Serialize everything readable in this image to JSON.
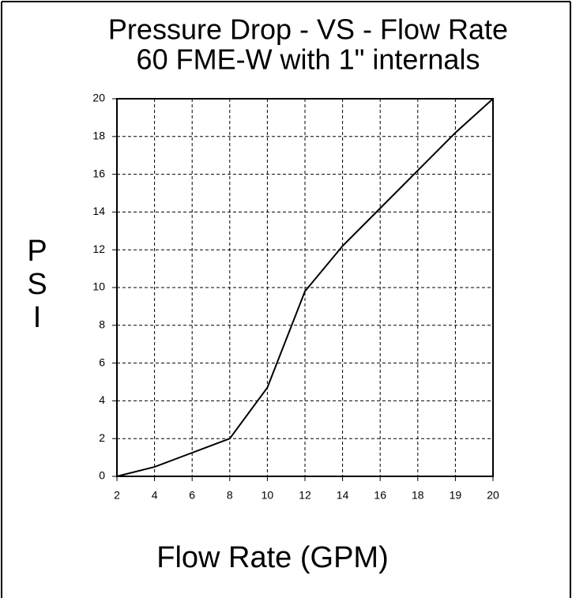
{
  "chart_data": {
    "type": "line",
    "title": "Pressure Drop - VS - Flow Rate",
    "subtitle": "60 FME-W with 1\" internals",
    "x_label": "Flow Rate (GPM)",
    "y_label": "PSI",
    "categories": [
      "2",
      "4",
      "6",
      "8",
      "10",
      "12",
      "14",
      "16",
      "18",
      "19",
      "20"
    ],
    "values": [
      0,
      0.5,
      1.25,
      2,
      4.7,
      9.8,
      12.2,
      14.2,
      16.2,
      18.2,
      20
    ],
    "color": "#000000",
    "ylim": [
      0,
      20
    ],
    "yticks": [
      0,
      2,
      4,
      6,
      8,
      10,
      12,
      14,
      16,
      18,
      20
    ],
    "grid": true
  }
}
